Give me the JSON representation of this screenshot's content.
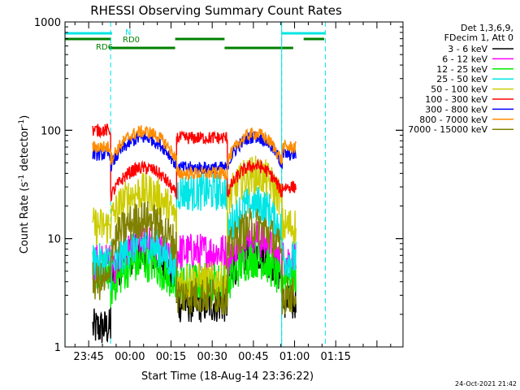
{
  "chart_data": {
    "type": "line",
    "title": "RHESSI Observing Summary Count Rates",
    "xlabel": "Start Time (18-Aug-14 23:36:22)",
    "ylabel_main": "Count Rate (s",
    "ylabel_sup1": "-1",
    "ylabel_mid": " detector",
    "ylabel_sup2": "-1",
    "ylabel_end": ")",
    "y_scale": "log",
    "ylim": [
      1,
      1000
    ],
    "xlim_minutes": [
      -23.63,
      99.5
    ],
    "x_ticks": [
      {
        "label": "23:45",
        "minutes": -15
      },
      {
        "label": "00:00",
        "minutes": 0
      },
      {
        "label": "00:15",
        "minutes": 15
      },
      {
        "label": "00:30",
        "minutes": 30
      },
      {
        "label": "00:45",
        "minutes": 45
      },
      {
        "label": "01:00",
        "minutes": 60
      },
      {
        "label": "01:15",
        "minutes": 75
      }
    ],
    "y_ticks": [
      {
        "label": "1",
        "value": 1
      },
      {
        "label": "10",
        "value": 10
      },
      {
        "label": "100",
        "value": 100
      },
      {
        "label": "1000",
        "value": 1000
      }
    ],
    "legend_header": [
      "Det 1,3,6,9,",
      "FDecim 1, Att 0"
    ],
    "legend_position": "right",
    "timestamp": "24-Oct-2021 21:42",
    "flag_labels": {
      "n": "N",
      "rd0": "RD0",
      "rd6": "RD6"
    },
    "flags": {
      "night": [
        [
          -23.5,
          -6.5
        ],
        [
          55.3,
          71.2
        ]
      ],
      "rd0": [
        [
          -23.5,
          -6.8
        ],
        [
          16.5,
          34.5
        ],
        [
          63.3,
          70.8
        ]
      ],
      "rd6": [
        [
          -7.5,
          16.5
        ],
        [
          34.5,
          59.5
        ]
      ]
    },
    "dashed_vlines_minutes": [
      -7,
      55.3,
      71.2
    ],
    "night_vlines_minutes": [
      -23.6,
      55.3
    ],
    "segments_minutes": [
      [
        -13.5,
        -7
      ],
      [
        -7,
        17
      ],
      [
        17,
        35.5
      ],
      [
        35.5,
        55.5
      ],
      [
        55.5,
        60.5
      ]
    ],
    "series": [
      {
        "name": "3 - 6 keV",
        "color": "#000000",
        "values": [
          1.5,
          7.5,
          2.5,
          7.5,
          2.5
        ]
      },
      {
        "name": "6 - 12 keV",
        "color": "#ff00ff",
        "values": [
          6,
          9,
          7.5,
          10,
          6.5
        ]
      },
      {
        "name": "12 - 25 keV",
        "color": "#00ee00",
        "values": [
          5,
          6,
          4,
          6.5,
          4.5
        ]
      },
      {
        "name": "25 - 50 keV",
        "color": "#00e5e5",
        "values": [
          6,
          9,
          27,
          21,
          6.5
        ]
      },
      {
        "name": "50 - 100 keV",
        "color": "#cccc00",
        "values": [
          13,
          27,
          4,
          39,
          13
        ]
      },
      {
        "name": "100 - 300 keV",
        "color": "#ff0000",
        "values": [
          100,
          45,
          85,
          47,
          30
        ]
      },
      {
        "name": "300 - 800 keV",
        "color": "#0000ff",
        "values": [
          60,
          85,
          45,
          87,
          60
        ]
      },
      {
        "name": "800 - 7000 keV",
        "color": "#ff8c00",
        "values": [
          70,
          97,
          40,
          93,
          70
        ]
      },
      {
        "name": "7000 - 15000 keV",
        "color": "#808000",
        "values": [
          4,
          15,
          3,
          13,
          3
        ]
      }
    ]
  }
}
